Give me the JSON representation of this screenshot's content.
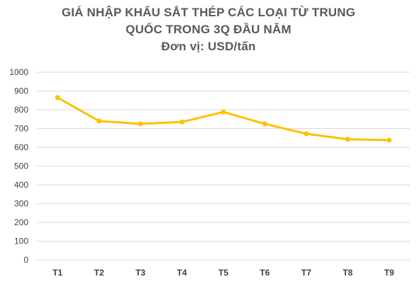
{
  "chart_data": {
    "type": "line",
    "title_lines": [
      "GIÁ NHẬP KHẨU SẮT THÉP CÁC LOẠI TỪ TRUNG",
      "QUỐC TRONG 3Q ĐẦU NĂM"
    ],
    "subtitle": "Đơn vị: USD/tấn",
    "xlabel": "",
    "ylabel": "",
    "categories": [
      "T1",
      "T2",
      "T3",
      "T4",
      "T5",
      "T6",
      "T7",
      "T8",
      "T9"
    ],
    "series": [
      {
        "values": [
          865,
          740,
          725,
          735,
          788,
          725,
          672,
          643,
          638
        ]
      }
    ],
    "ylim": [
      0,
      1000
    ],
    "yticks": [
      0,
      100,
      200,
      300,
      400,
      500,
      600,
      700,
      800,
      900,
      1000
    ],
    "grid": true,
    "legend": "none",
    "line_color": "#FFC000",
    "grid_color": "#D9D9D9"
  }
}
